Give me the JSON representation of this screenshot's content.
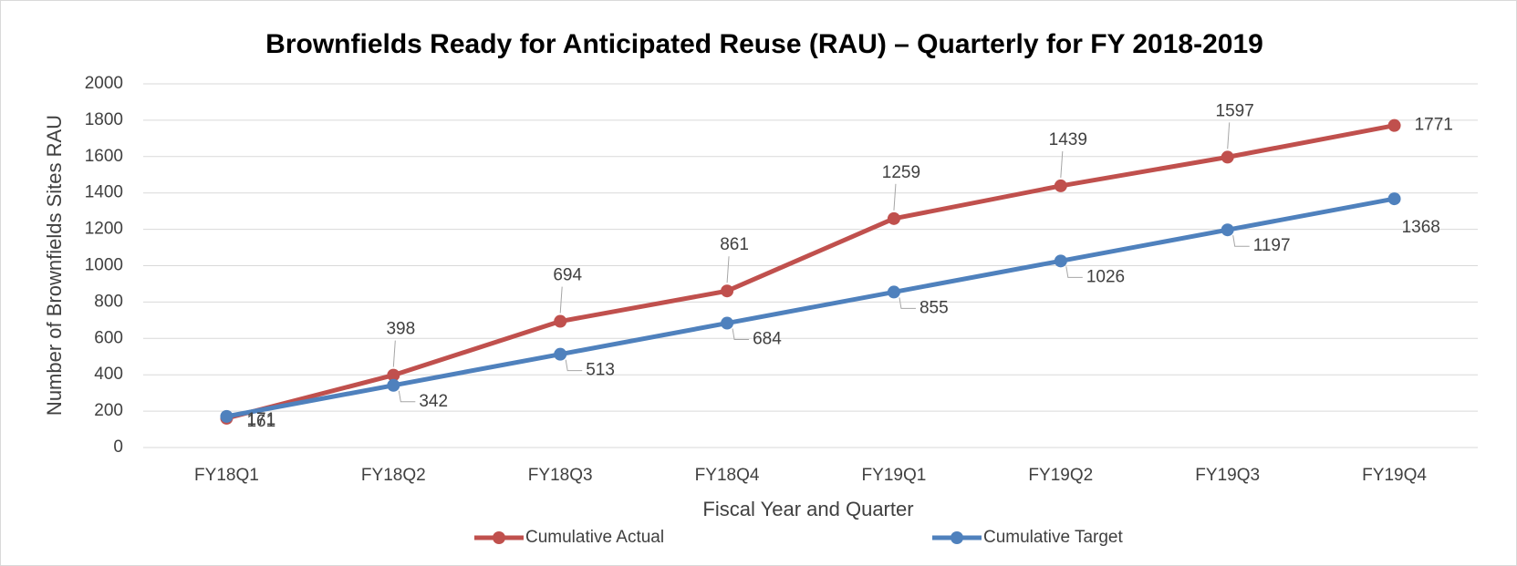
{
  "chart_data": {
    "type": "line",
    "title": "Brownfields Ready for Anticipated Reuse (RAU) – Quarterly for FY 2018-2019",
    "x_label": "Fiscal Year and Quarter",
    "y_label": "Number of Brownfields Sites RAU",
    "categories": [
      "FY18Q1",
      "FY18Q2",
      "FY18Q3",
      "FY18Q4",
      "FY19Q1",
      "FY19Q2",
      "FY19Q3",
      "FY19Q4"
    ],
    "series": [
      {
        "name": "Cumulative Actual",
        "color": "#c0504d",
        "values": [
          161,
          398,
          694,
          861,
          1259,
          1439,
          1597,
          1771
        ]
      },
      {
        "name": "Cumulative Target",
        "color": "#4f81bd",
        "values": [
          171,
          342,
          513,
          684,
          855,
          1026,
          1197,
          1368
        ]
      }
    ],
    "ylim": [
      0,
      2000
    ],
    "yticks": [
      0,
      200,
      400,
      600,
      800,
      1000,
      1200,
      1400,
      1600,
      1800,
      2000
    ],
    "grid": true,
    "legend": "bottom"
  }
}
